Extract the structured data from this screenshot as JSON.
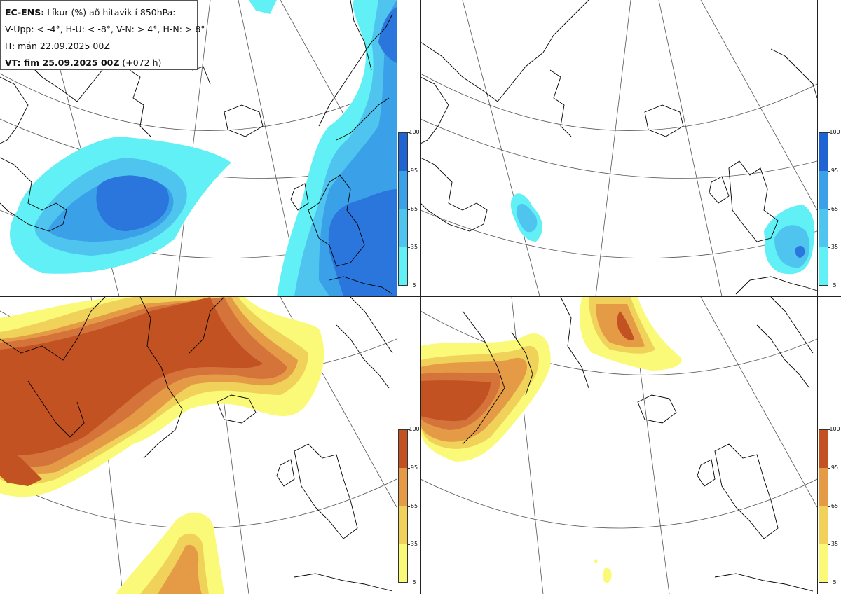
{
  "legend": {
    "line1_prefix": "EC-ENS:",
    "line1_rest": "Líkur (%) að hitavik í 850hPa:",
    "line2": "V-Upp: < -4°, H-U: < -8°, V-N: > 4°, H-N: > 8°",
    "line3": "IT: mán 22.09.2025 00Z",
    "line4_prefix": "VT: fim 25.09.2025 00Z",
    "line4_rest": "(+072 h)"
  },
  "colorbar_ticks": [
    "100",
    "95",
    "65",
    "35",
    "5"
  ],
  "colors": {
    "blue": [
      "#60f0f5",
      "#4fc4ef",
      "#3aa0e8",
      "#2b76dc",
      "#1f64d2"
    ],
    "orange": [
      "#fafa78",
      "#f0d25a",
      "#e59b46",
      "#d4743a",
      "#c35222"
    ],
    "land_line": "#000000",
    "grid_line": "#555555"
  },
  "panels": [
    {
      "name": "v-upp",
      "label": "V-Upp",
      "scheme": "blue"
    },
    {
      "name": "h-u",
      "label": "H-U",
      "scheme": "blue"
    },
    {
      "name": "v-n",
      "label": "V-N",
      "scheme": "orange"
    },
    {
      "name": "h-n",
      "label": "H-N",
      "scheme": "orange"
    }
  ]
}
